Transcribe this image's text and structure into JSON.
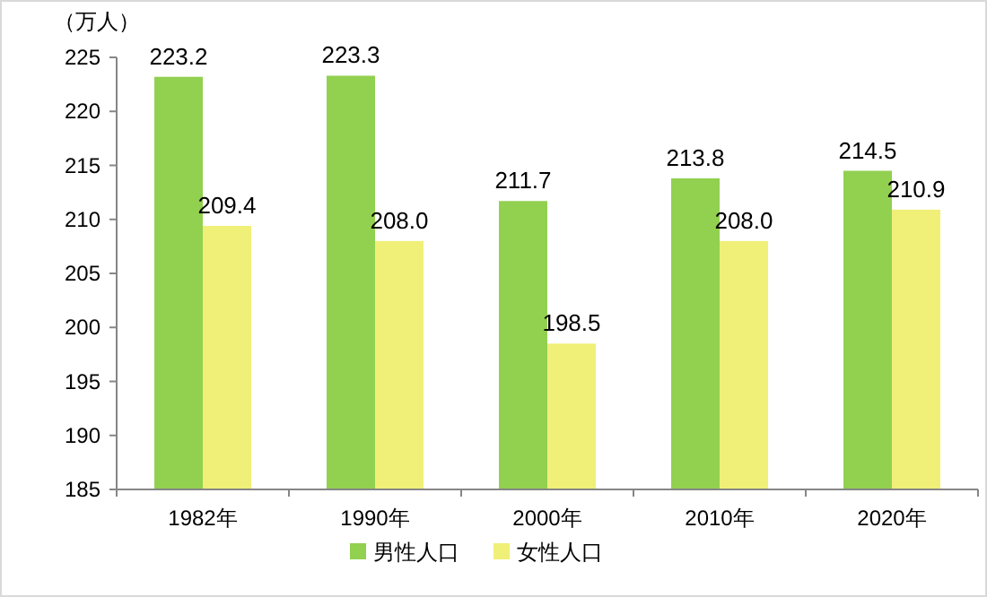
{
  "chart_data": {
    "type": "bar",
    "ylabel": "（万人）",
    "categories": [
      "1982年",
      "1990年",
      "2000年",
      "2010年",
      "2020年"
    ],
    "series": [
      {
        "name": "男性人口",
        "color": "#92d050",
        "values": [
          223.2,
          223.3,
          211.7,
          213.8,
          214.5
        ]
      },
      {
        "name": "女性人口",
        "color": "#f0ef78",
        "values": [
          209.4,
          208.0,
          198.5,
          208.0,
          210.9
        ]
      }
    ],
    "ylim": [
      185,
      225
    ],
    "yticks": [
      185,
      190,
      195,
      200,
      205,
      210,
      215,
      220,
      225
    ],
    "value_labels": [
      [
        "223.2",
        "223.3",
        "211.7",
        "213.8",
        "214.5"
      ],
      [
        "209.4",
        "208.0",
        "198.5",
        "208.0",
        "210.9"
      ]
    ],
    "legend": "bottom",
    "grid": false
  }
}
